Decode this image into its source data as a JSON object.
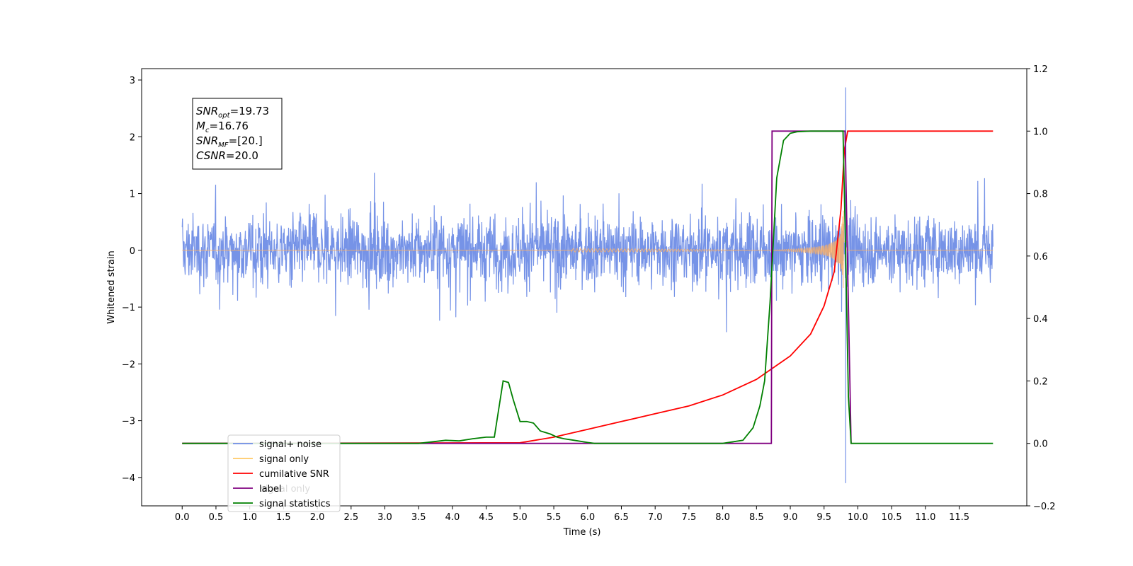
{
  "chart_data": {
    "type": "line",
    "xlabel": "Time (s)",
    "ylabel_left": "Whitened strain",
    "ylabel_right": "",
    "xlim": [
      -0.6,
      12.5
    ],
    "ylim_left": [
      -4.5,
      3.2
    ],
    "ylim_right": [
      -0.2,
      1.2
    ],
    "x_ticks": [
      "0.0",
      "0.5",
      "1.0",
      "1.5",
      "2.0",
      "2.5",
      "3.0",
      "3.5",
      "4.0",
      "4.5",
      "5.0",
      "5.5",
      "6.0",
      "6.5",
      "7.0",
      "7.5",
      "8.0",
      "8.5",
      "9.0",
      "9.5",
      "10.0",
      "10.5",
      "11.0",
      "11.5"
    ],
    "y_ticks_left": [
      "3",
      "2",
      "1",
      "0",
      "−1",
      "−2",
      "−3",
      "−4"
    ],
    "y_ticks_right": [
      "1.2",
      "1.0",
      "0.8",
      "0.6",
      "0.4",
      "0.2",
      "0.0",
      "−0.2"
    ],
    "annotation": {
      "lines": [
        {
          "symbol": "SNR",
          "sub": "opt",
          "value": "=19.73"
        },
        {
          "symbol": "M",
          "sub": "c",
          "value": "=16.76"
        },
        {
          "symbol": "SNR",
          "sub": "MF",
          "value": "=[20.]"
        },
        {
          "symbol": "CSNR",
          "sub": "",
          "value": "=20.0"
        }
      ]
    },
    "legend": {
      "placement": "lower-left",
      "entries": [
        {
          "label": "signal+ noise",
          "color": "#6f8de6"
        },
        {
          "label": "signal only",
          "color": "#ffc966"
        },
        {
          "label": "cumilative SNR",
          "color": "#ff0000"
        },
        {
          "label": "label",
          "color": "#800080"
        },
        {
          "label": "signal statistics",
          "color": "#008000"
        }
      ],
      "ghost_text": "signal only"
    },
    "series": [
      {
        "name": "signal+ noise",
        "axis": "left",
        "color": "#6f8de6",
        "kind": "noise",
        "x_range": [
          0,
          12
        ],
        "typical_amplitude": 1.0,
        "max_peak": 2.87,
        "min_peak": -4.1,
        "peak_x": 9.82
      },
      {
        "name": "signal only",
        "axis": "left",
        "color": "#ffb060",
        "kind": "chirp",
        "x_range": [
          0,
          12
        ],
        "merger_x": 9.8,
        "max_amplitude": 1.0
      },
      {
        "name": "cumilative SNR",
        "axis": "right",
        "color": "#ff0000",
        "x": [
          0,
          5.0,
          5.5,
          6.0,
          6.5,
          7.0,
          7.5,
          8.0,
          8.5,
          9.0,
          9.3,
          9.5,
          9.65,
          9.75,
          9.8,
          9.85,
          12.0
        ],
        "y": [
          0.0,
          0.002,
          0.02,
          0.045,
          0.07,
          0.095,
          0.12,
          0.155,
          0.205,
          0.28,
          0.35,
          0.44,
          0.55,
          0.75,
          0.94,
          1.0,
          1.0
        ]
      },
      {
        "name": "label",
        "axis": "right",
        "color": "#800080",
        "x": [
          0,
          8.72,
          8.73,
          9.8,
          9.81,
          9.9,
          9.91
        ],
        "y": [
          0.0,
          0.0,
          1.0,
          1.0,
          1.0,
          0.0,
          0.0
        ]
      },
      {
        "name": "signal statistics",
        "axis": "right",
        "color": "#008000",
        "x": [
          0,
          3.5,
          3.9,
          4.1,
          4.3,
          4.5,
          4.62,
          4.75,
          4.83,
          4.9,
          5.0,
          5.1,
          5.2,
          5.3,
          5.45,
          5.55,
          5.65,
          5.8,
          6.0,
          6.1,
          8.0,
          8.3,
          8.45,
          8.55,
          8.62,
          8.7,
          8.8,
          8.9,
          9.0,
          9.1,
          9.3,
          9.5,
          9.7,
          9.78,
          9.82,
          9.86,
          9.9,
          12.0
        ],
        "y": [
          0.0,
          0.0,
          0.01,
          0.008,
          0.015,
          0.02,
          0.02,
          0.2,
          0.195,
          0.14,
          0.07,
          0.07,
          0.065,
          0.04,
          0.03,
          0.02,
          0.015,
          0.01,
          0.003,
          0.0,
          0.0,
          0.01,
          0.05,
          0.12,
          0.2,
          0.45,
          0.85,
          0.97,
          0.993,
          0.998,
          1.0,
          1.0,
          1.0,
          1.0,
          0.6,
          0.15,
          0.0,
          0.0
        ]
      }
    ]
  }
}
